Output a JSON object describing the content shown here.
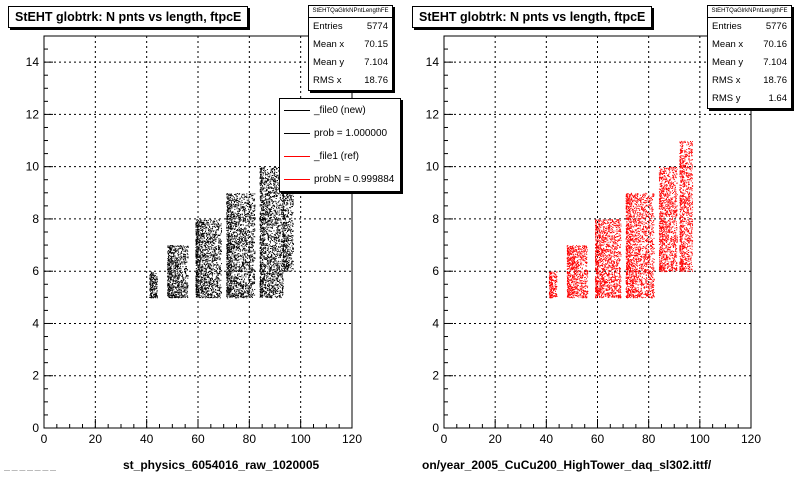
{
  "chart_data": [
    {
      "type": "scatter",
      "title": "StEHT globtrk: N pnts vs length, ftpcE",
      "xlabel": "st_physics_6054016_raw_1020005",
      "xlim": [
        0,
        120
      ],
      "ylim": [
        0,
        15
      ],
      "xticks": [
        0,
        20,
        40,
        60,
        80,
        100,
        120
      ],
      "yticks": [
        0,
        2,
        4,
        6,
        8,
        10,
        12,
        14
      ],
      "grid": true,
      "color": "#000000",
      "bands": [
        {
          "y_min": 5,
          "y_max": 6,
          "x_min": 41,
          "x_max": 44
        },
        {
          "y_min": 5,
          "y_max": 7,
          "x_min": 48,
          "x_max": 56
        },
        {
          "y_min": 5,
          "y_max": 8,
          "x_min": 59,
          "x_max": 69
        },
        {
          "y_min": 5,
          "y_max": 9,
          "x_min": 71,
          "x_max": 82
        },
        {
          "y_min": 5,
          "y_max": 10,
          "x_min": 84,
          "x_max": 93
        },
        {
          "y_min": 6,
          "y_max": 11,
          "x_min": 93,
          "x_max": 97
        }
      ],
      "stats": {
        "header": "StEHTQaGlrkNPntLengthFE",
        "rows": [
          {
            "label": "Entries",
            "value": "5774"
          },
          {
            "label": "Mean x",
            "value": "70.15"
          },
          {
            "label": "Mean y",
            "value": "7.104"
          },
          {
            "label": "RMS x",
            "value": "18.76"
          }
        ]
      },
      "legend": {
        "placement": "top-right",
        "entries": [
          {
            "label": "_file0 (new)",
            "color": "#000000"
          },
          {
            "label": "prob = 1.000000",
            "color": "#000000"
          },
          {
            "label": "_file1 (ref)",
            "color": "#ff0000"
          },
          {
            "label": "probN = 0.999884",
            "color": "#ff0000"
          }
        ]
      }
    },
    {
      "type": "scatter",
      "title": "StEHT globtrk: N pnts vs length, ftpcE",
      "xlabel": "on/year_2005_CuCu200_HighTower_daq_sl302.ittf/",
      "xlim": [
        0,
        120
      ],
      "ylim": [
        0,
        15
      ],
      "xticks": [
        0,
        20,
        40,
        60,
        80,
        100,
        120
      ],
      "yticks": [
        0,
        2,
        4,
        6,
        8,
        10,
        12,
        14
      ],
      "grid": true,
      "color": "#ff0000",
      "bands": [
        {
          "y_min": 5,
          "y_max": 6,
          "x_min": 41,
          "x_max": 44
        },
        {
          "y_min": 5,
          "y_max": 7,
          "x_min": 48,
          "x_max": 56
        },
        {
          "y_min": 5,
          "y_max": 8,
          "x_min": 59,
          "x_max": 69
        },
        {
          "y_min": 5,
          "y_max": 9,
          "x_min": 71,
          "x_max": 82
        },
        {
          "y_min": 6,
          "y_max": 10,
          "x_min": 84,
          "x_max": 91
        },
        {
          "y_min": 6,
          "y_max": 11,
          "x_min": 92,
          "x_max": 97
        }
      ],
      "stats": {
        "header": "StEHTQaGlrkNPntLengthFE",
        "rows": [
          {
            "label": "Entries",
            "value": "5776"
          },
          {
            "label": "Mean x",
            "value": "70.16"
          },
          {
            "label": "Mean y",
            "value": "7.104"
          },
          {
            "label": "RMS x",
            "value": "18.76"
          },
          {
            "label": "RMS y",
            "value": "1.64"
          }
        ]
      }
    }
  ],
  "footer_text": "— — — — — — —"
}
